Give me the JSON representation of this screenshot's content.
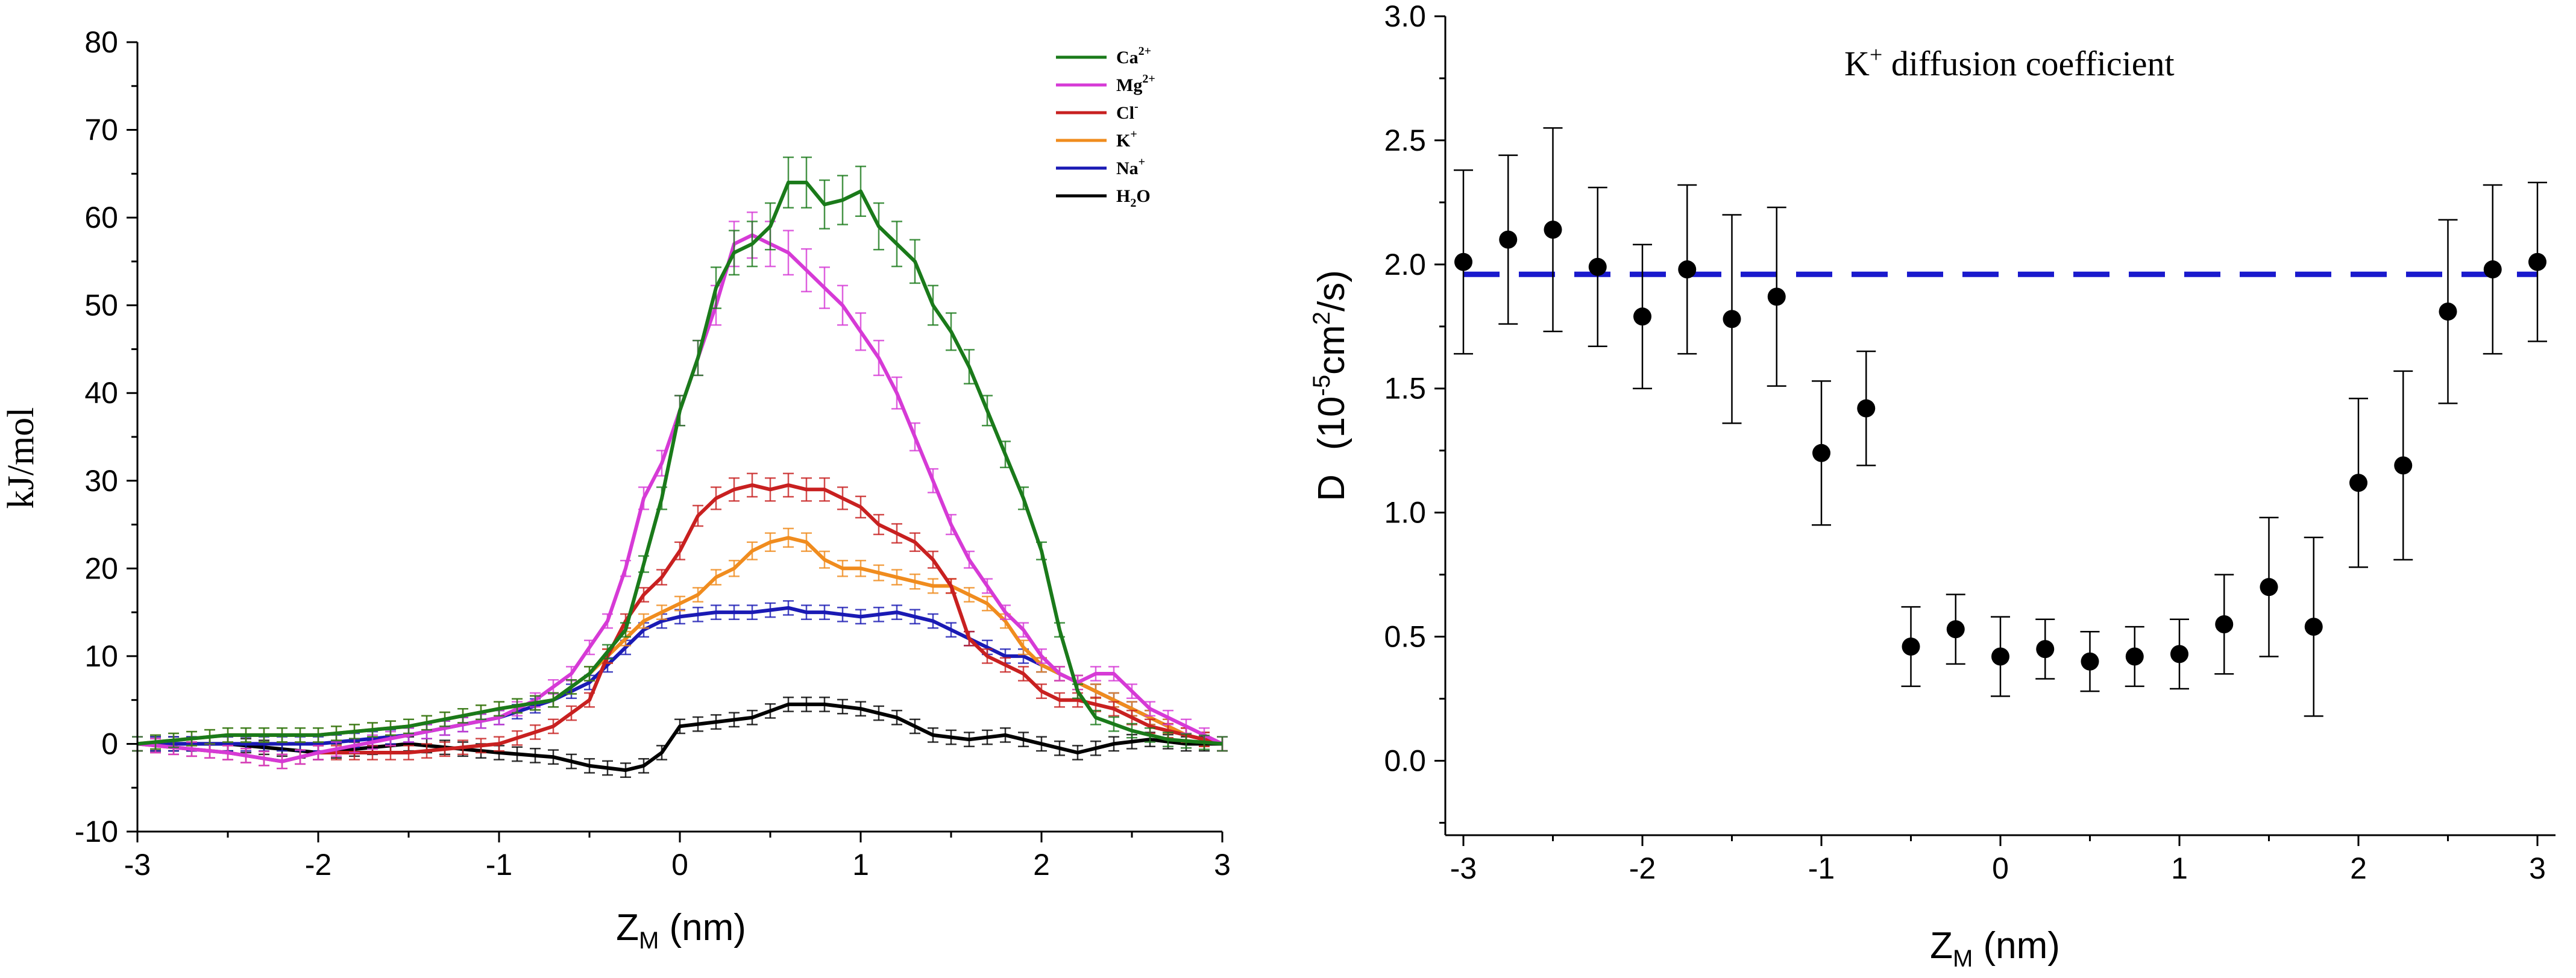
{
  "chart_data": [
    {
      "type": "line",
      "title": "",
      "xlabel": {
        "main": "Z",
        "sub": "M",
        "unit": " (nm)"
      },
      "ylabel": "kJ/mol",
      "xlim": [
        -3,
        3
      ],
      "ylim": [
        -10,
        80
      ],
      "xticks": [
        -3,
        -2,
        -1,
        0,
        1,
        2,
        3
      ],
      "yticks": [
        -10,
        0,
        10,
        20,
        30,
        40,
        50,
        60,
        70,
        80
      ],
      "legend": "top-right",
      "series": [
        {
          "name": "Ca",
          "sup": "2+",
          "sub": "",
          "color": "#1a7a1a",
          "x": [
            -3,
            -2.5,
            -2,
            -1.5,
            -1,
            -0.7,
            -0.5,
            -0.3,
            -0.1,
            0,
            0.1,
            0.2,
            0.3,
            0.4,
            0.5,
            0.6,
            0.7,
            0.8,
            0.9,
            1.0,
            1.1,
            1.2,
            1.3,
            1.4,
            1.5,
            1.6,
            1.7,
            1.8,
            1.9,
            2.0,
            2.1,
            2.2,
            2.3,
            2.5,
            2.7,
            3.0
          ],
          "y": [
            0,
            1,
            1,
            2,
            4,
            5,
            8,
            13,
            28,
            38,
            44,
            52,
            56,
            57,
            59,
            64,
            64,
            61.5,
            62,
            63,
            59,
            57,
            55,
            50,
            47,
            43,
            38,
            33,
            28,
            22,
            13,
            6,
            3,
            1.5,
            0.5,
            0
          ]
        },
        {
          "name": "Mg",
          "sup": "2+",
          "sub": "",
          "color": "#d63ad6",
          "x": [
            -3,
            -2.5,
            -2.2,
            -2,
            -1.5,
            -1,
            -0.8,
            -0.6,
            -0.4,
            -0.3,
            -0.2,
            -0.1,
            0,
            0.1,
            0.2,
            0.3,
            0.4,
            0.5,
            0.6,
            0.7,
            0.8,
            0.9,
            1.0,
            1.1,
            1.2,
            1.3,
            1.4,
            1.5,
            1.6,
            1.7,
            1.8,
            1.9,
            2.0,
            2.1,
            2.2,
            2.3,
            2.4,
            2.6,
            2.8,
            3.0
          ],
          "y": [
            0,
            -1,
            -2,
            -1,
            1,
            3,
            5,
            8,
            14,
            20,
            28,
            32,
            38,
            44,
            50,
            57,
            58,
            57,
            56,
            54,
            52,
            50,
            47,
            44,
            40,
            35,
            30,
            25,
            21,
            18,
            15,
            13,
            10,
            8,
            7,
            8,
            8,
            4,
            2,
            0
          ]
        },
        {
          "name": "Cl",
          "sup": "-",
          "sub": "",
          "color": "#c82020",
          "x": [
            -3,
            -2.5,
            -2.2,
            -2,
            -1.5,
            -1,
            -0.7,
            -0.5,
            -0.4,
            -0.3,
            -0.2,
            -0.1,
            0,
            0.1,
            0.2,
            0.3,
            0.4,
            0.5,
            0.6,
            0.7,
            0.8,
            0.9,
            1.0,
            1.1,
            1.2,
            1.3,
            1.4,
            1.5,
            1.6,
            1.7,
            1.8,
            1.9,
            2.0,
            2.1,
            2.2,
            2.4,
            2.6,
            2.8,
            3.0
          ],
          "y": [
            0,
            -1,
            -2,
            -1,
            -1,
            0,
            2,
            5,
            10,
            14,
            17,
            19,
            22,
            26,
            28,
            29,
            29.5,
            29,
            29.5,
            29,
            29,
            28,
            27,
            25,
            24,
            23,
            21,
            18,
            12,
            10,
            9,
            8,
            6,
            5,
            5,
            4,
            2,
            1,
            0
          ]
        },
        {
          "name": "K",
          "sup": "+",
          "sub": "",
          "color": "#f08c1e",
          "x": [
            -3,
            -2.5,
            -2,
            -1.5,
            -1,
            -0.7,
            -0.5,
            -0.4,
            -0.3,
            -0.2,
            -0.1,
            0,
            0.1,
            0.2,
            0.3,
            0.4,
            0.5,
            0.6,
            0.7,
            0.8,
            0.9,
            1.0,
            1.1,
            1.2,
            1.3,
            1.4,
            1.5,
            1.6,
            1.7,
            1.8,
            1.9,
            2.0,
            2.2,
            2.4,
            2.6,
            2.8,
            3.0
          ],
          "y": [
            0,
            1,
            1,
            2,
            4,
            5,
            8,
            10,
            12,
            14,
            15,
            16,
            17,
            19,
            20,
            22,
            23,
            23.5,
            23,
            21,
            20,
            20,
            19.5,
            19,
            18.5,
            18,
            18,
            17,
            16,
            14,
            11,
            9,
            7,
            5,
            3,
            1,
            0
          ]
        },
        {
          "name": "Na",
          "sup": "+",
          "sub": "",
          "color": "#1a1ab4",
          "x": [
            -3,
            -2.5,
            -2,
            -1.5,
            -1,
            -0.7,
            -0.5,
            -0.4,
            -0.3,
            -0.2,
            -0.1,
            0,
            0.2,
            0.4,
            0.6,
            0.7,
            0.8,
            1.0,
            1.2,
            1.4,
            1.5,
            1.6,
            1.7,
            1.8,
            1.9,
            2.0,
            2.1,
            2.2,
            2.4,
            2.6,
            2.8,
            3.0
          ],
          "y": [
            0,
            0,
            0,
            1,
            3,
            5,
            7,
            9,
            11,
            13,
            14,
            14.5,
            15,
            15,
            15.5,
            15,
            15,
            14.5,
            15,
            14,
            13,
            12,
            11,
            10,
            10,
            9,
            8,
            7,
            5,
            3,
            1,
            0
          ]
        },
        {
          "name": "H",
          "sup": "",
          "sub": "2",
          "tail": "O",
          "color": "#000000",
          "x": [
            -3,
            -2.5,
            -2,
            -1.5,
            -1,
            -0.7,
            -0.5,
            -0.3,
            -0.2,
            -0.1,
            0,
            0.2,
            0.4,
            0.6,
            0.8,
            1.0,
            1.2,
            1.4,
            1.6,
            1.8,
            2.0,
            2.2,
            2.4,
            2.6,
            2.8,
            3.0
          ],
          "y": [
            0,
            0,
            -1,
            0,
            -1,
            -1.5,
            -2.5,
            -3,
            -2.5,
            -1,
            2,
            2.5,
            3,
            4.5,
            4.5,
            4,
            3,
            1,
            0.5,
            1,
            0,
            -1,
            0,
            0.5,
            0,
            0
          ]
        }
      ]
    },
    {
      "type": "scatter",
      "title": "",
      "annotation": {
        "prefix": "K",
        "sup": "+",
        "rest": " diffusion coefficient"
      },
      "xlabel": {
        "main": "Z",
        "sub": "M",
        "unit": " (nm)"
      },
      "ylabel": {
        "symbol": "D",
        "open": "(10",
        "exp": "-5",
        "mid": "cm",
        "exp2": "2",
        "close": "/s)"
      },
      "xlim": [
        -3,
        3
      ],
      "ylim": [
        -0.3,
        3.0
      ],
      "xticks": [
        -3,
        -2,
        -1,
        0,
        1,
        2,
        3
      ],
      "yticks": [
        0.0,
        0.5,
        1.0,
        1.5,
        2.0,
        2.5,
        3.0
      ],
      "ytick_labels": [
        "0.0",
        "0.5",
        "1.0",
        "1.5",
        "2.0",
        "2.5",
        "3.0"
      ],
      "reference_line": {
        "y": 1.96,
        "color": "#1a1acd",
        "style": "dashed"
      },
      "points": {
        "x": [
          -3,
          -2.75,
          -2.5,
          -2.25,
          -2,
          -1.75,
          -1.5,
          -1.25,
          -1,
          -0.75,
          -0.5,
          -0.25,
          0,
          0.25,
          0.5,
          0.75,
          1,
          1.25,
          1.5,
          1.75,
          2,
          2.25,
          2.5,
          2.75,
          3
        ],
        "y": [
          2.01,
          2.1,
          2.14,
          1.99,
          1.79,
          1.98,
          1.78,
          1.87,
          1.24,
          1.42,
          0.46,
          0.53,
          0.42,
          0.45,
          0.4,
          0.42,
          0.43,
          0.55,
          0.7,
          0.54,
          1.12,
          1.19,
          1.81,
          1.98,
          2.01
        ],
        "err": [
          0.37,
          0.34,
          0.41,
          0.32,
          0.29,
          0.34,
          0.42,
          0.36,
          0.29,
          0.23,
          0.16,
          0.14,
          0.16,
          0.12,
          0.12,
          0.12,
          0.14,
          0.2,
          0.28,
          0.36,
          0.34,
          0.38,
          0.37,
          0.34,
          0.32
        ]
      }
    }
  ]
}
